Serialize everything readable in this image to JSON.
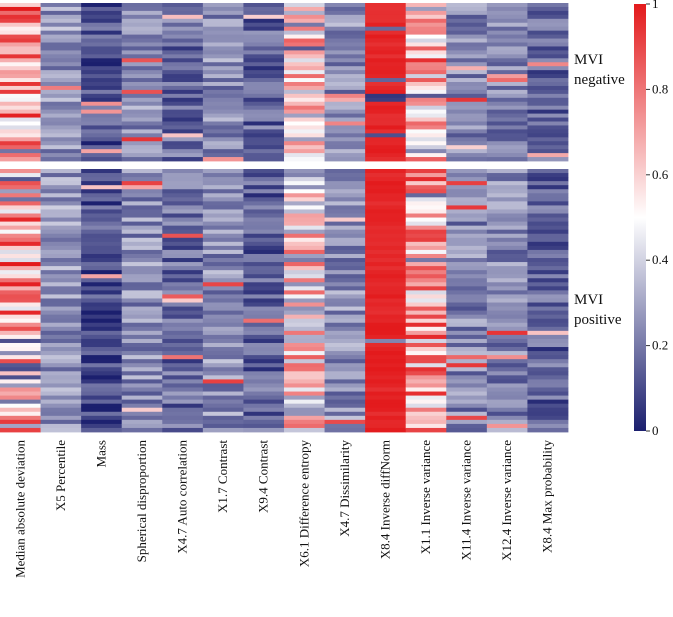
{
  "chart_data": {
    "type": "heatmap",
    "title": "",
    "columns": [
      "Median absolute deviation",
      "X5 Percentile",
      "Mass",
      "Spherical disproportion",
      "X4.7 Auto correlation",
      "X1.7 Contrast",
      "X9.4 Contrast",
      "X6.1 Difference entropy",
      "X4.7 Dissimilarity",
      "X8.4 Inverse diffNorm",
      "X1.1 Inverse variance",
      "X11.4 Inverse variance",
      "X12.4 Inverse variance",
      "X8.4 Max probability"
    ],
    "groups": [
      {
        "name": "MVI negative",
        "line1": "MVI",
        "line2": "negative",
        "rows": 40
      },
      {
        "name": "MVI positive",
        "line1": "MVI",
        "line2": "positive",
        "rows": 65
      }
    ],
    "column_mean_levels": [
      0.72,
      0.22,
      0.05,
      0.2,
      0.12,
      0.2,
      0.1,
      0.55,
      0.2,
      0.96,
      0.68,
      0.18,
      0.18,
      0.1
    ],
    "notable_values": [
      {
        "column": "X8.4 Inverse diffNorm",
        "range": "near 1 for most rows"
      },
      {
        "column": "Median absolute deviation",
        "range": "mostly 0.6–0.9"
      },
      {
        "column": "Mass",
        "range": "near 0 for most rows"
      }
    ],
    "color_scale": {
      "min": 0,
      "max": 1,
      "ticks": [
        "0",
        "0.2",
        "0.4",
        "0.6",
        "0.8",
        "1"
      ],
      "low_color": "#1b1f6e",
      "mid_color": "#ffffff",
      "high_color": "#e31a1c"
    }
  }
}
